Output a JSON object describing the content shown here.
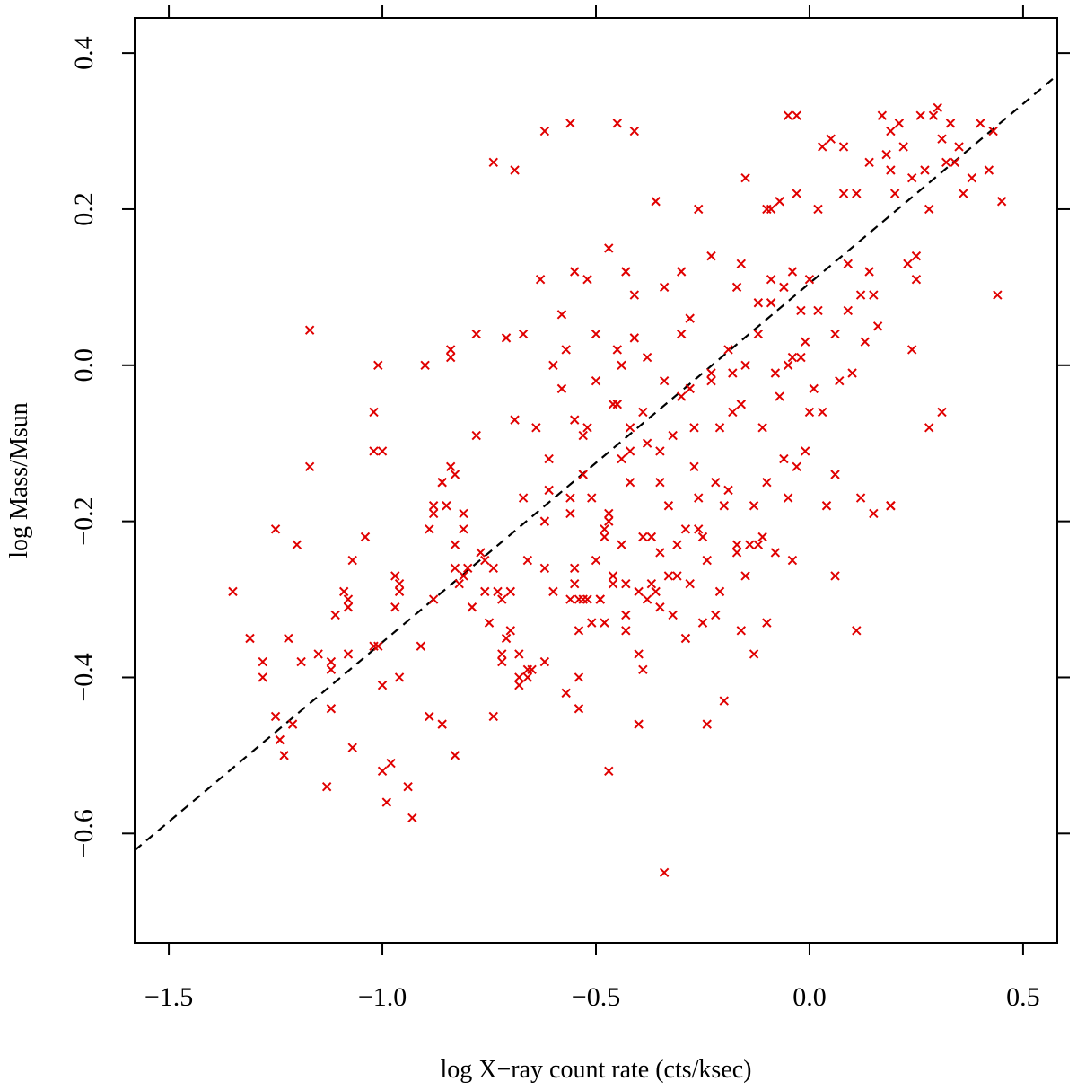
{
  "chart_data": {
    "type": "scatter",
    "title": "",
    "xlabel": "log X−ray count rate (cts/ksec)",
    "ylabel": "log Mass/Msun",
    "xlim": [
      -1.58,
      0.58
    ],
    "ylim": [
      -0.74,
      0.445
    ],
    "xticks": [
      -1.5,
      -1.0,
      -0.5,
      0.0,
      0.5
    ],
    "xtick_labels": [
      "−1.5",
      "−1.0",
      "−0.5",
      "0.0",
      "0.5"
    ],
    "yticks": [
      -0.6,
      -0.4,
      -0.2,
      0.0,
      0.2,
      0.4
    ],
    "ytick_labels": [
      "−0.6",
      "−0.4",
      "−0.2",
      "0.0",
      "0.2",
      "0.4"
    ],
    "grid": false,
    "marker": "x",
    "point_color": "#e00000",
    "line_color": "#000000",
    "fit_line": {
      "style": "dashed",
      "intercept": 0.105,
      "slope": 0.46
    },
    "points": [
      [
        -1.35,
        -0.29
      ],
      [
        -1.31,
        -0.35
      ],
      [
        -1.28,
        -0.38
      ],
      [
        -1.28,
        -0.4
      ],
      [
        -1.25,
        -0.21
      ],
      [
        -1.25,
        -0.45
      ],
      [
        -1.24,
        -0.48
      ],
      [
        -1.23,
        -0.5
      ],
      [
        -1.22,
        -0.35
      ],
      [
        -1.21,
        -0.46
      ],
      [
        -1.2,
        -0.23
      ],
      [
        -1.19,
        -0.38
      ],
      [
        -1.17,
        0.045
      ],
      [
        -1.17,
        -0.13
      ],
      [
        -1.15,
        -0.37
      ],
      [
        -1.13,
        -0.54
      ],
      [
        -1.12,
        -0.44
      ],
      [
        -1.12,
        -0.38
      ],
      [
        -1.12,
        -0.39
      ],
      [
        -1.11,
        -0.32
      ],
      [
        -1.08,
        -0.37
      ],
      [
        -1.09,
        -0.29
      ],
      [
        -1.08,
        -0.3
      ],
      [
        -1.08,
        -0.31
      ],
      [
        -1.07,
        -0.25
      ],
      [
        -1.07,
        -0.49
      ],
      [
        -1.04,
        -0.22
      ],
      [
        -1.02,
        -0.36
      ],
      [
        -1.01,
        -0.36
      ],
      [
        -1.01,
        0.0
      ],
      [
        -1.02,
        -0.06
      ],
      [
        -1.02,
        -0.11
      ],
      [
        -1.0,
        -0.11
      ],
      [
        -1.0,
        -0.41
      ],
      [
        -1.0,
        -0.52
      ],
      [
        -0.99,
        -0.56
      ],
      [
        -0.98,
        -0.51
      ],
      [
        -0.97,
        -0.27
      ],
      [
        -0.97,
        -0.31
      ],
      [
        -0.96,
        -0.28
      ],
      [
        -0.96,
        -0.29
      ],
      [
        -0.96,
        -0.4
      ],
      [
        -0.94,
        -0.54
      ],
      [
        -0.93,
        -0.58
      ],
      [
        -0.91,
        -0.36
      ],
      [
        -0.89,
        -0.45
      ],
      [
        -0.9,
        0.0
      ],
      [
        -0.89,
        -0.21
      ],
      [
        -0.88,
        -0.18
      ],
      [
        -0.88,
        -0.19
      ],
      [
        -0.88,
        -0.3
      ],
      [
        -0.86,
        -0.15
      ],
      [
        -0.86,
        -0.15
      ],
      [
        -0.86,
        -0.46
      ],
      [
        -0.85,
        -0.18
      ],
      [
        -0.84,
        0.02
      ],
      [
        -0.84,
        0.01
      ],
      [
        -0.84,
        -0.13
      ],
      [
        -0.83,
        -0.14
      ],
      [
        -0.83,
        -0.23
      ],
      [
        -0.83,
        -0.26
      ],
      [
        -0.83,
        -0.5
      ],
      [
        -0.82,
        -0.28
      ],
      [
        -0.81,
        -0.19
      ],
      [
        -0.81,
        -0.21
      ],
      [
        -0.81,
        -0.27
      ],
      [
        -0.8,
        -0.26
      ],
      [
        -0.79,
        -0.31
      ],
      [
        -0.78,
        -0.09
      ],
      [
        -0.77,
        -0.24
      ],
      [
        -0.76,
        -0.25
      ],
      [
        -0.76,
        -0.29
      ],
      [
        -0.75,
        -0.33
      ],
      [
        -0.74,
        -0.45
      ],
      [
        -0.74,
        -0.26
      ],
      [
        -0.73,
        -0.29
      ],
      [
        -0.72,
        -0.38
      ],
      [
        -0.72,
        -0.37
      ],
      [
        -0.72,
        -0.3
      ],
      [
        -0.71,
        0.035
      ],
      [
        -0.71,
        -0.35
      ],
      [
        -0.7,
        -0.29
      ],
      [
        -0.7,
        -0.34
      ],
      [
        -0.69,
        -0.07
      ],
      [
        -0.69,
        0.25
      ],
      [
        -0.68,
        -0.37
      ],
      [
        -0.68,
        -0.4
      ],
      [
        -0.68,
        -0.41
      ],
      [
        -0.67,
        0.04
      ],
      [
        -0.67,
        -0.17
      ],
      [
        -0.66,
        -0.25
      ],
      [
        -0.66,
        -0.4
      ],
      [
        -0.66,
        -0.39
      ],
      [
        -0.65,
        -0.39
      ],
      [
        -0.64,
        -0.08
      ],
      [
        -0.63,
        0.11
      ],
      [
        -0.62,
        -0.38
      ],
      [
        -0.62,
        -0.26
      ],
      [
        -0.62,
        -0.2
      ],
      [
        -0.61,
        -0.12
      ],
      [
        -0.61,
        -0.16
      ],
      [
        -0.6,
        -0.29
      ],
      [
        -0.58,
        0.065
      ],
      [
        -0.57,
        -0.42
      ],
      [
        -0.56,
        -0.3
      ],
      [
        -0.56,
        -0.17
      ],
      [
        -0.56,
        -0.19
      ],
      [
        -0.55,
        0.12
      ],
      [
        -0.55,
        -0.26
      ],
      [
        -0.55,
        -0.28
      ],
      [
        -0.54,
        -0.44
      ],
      [
        -0.54,
        -0.34
      ],
      [
        -0.54,
        -0.3
      ],
      [
        -0.54,
        -0.4
      ],
      [
        -0.53,
        -0.3
      ],
      [
        -0.53,
        -0.14
      ],
      [
        -0.52,
        -0.08
      ],
      [
        -0.52,
        -0.3
      ],
      [
        -0.51,
        -0.17
      ],
      [
        -0.51,
        -0.33
      ],
      [
        -0.5,
        -0.02
      ],
      [
        -0.5,
        0.04
      ],
      [
        -0.5,
        -0.25
      ],
      [
        -0.49,
        -0.3
      ],
      [
        -0.49,
        -0.3
      ],
      [
        -0.48,
        -0.21
      ],
      [
        -0.48,
        -0.22
      ],
      [
        -0.48,
        -0.33
      ],
      [
        -0.47,
        -0.52
      ],
      [
        -0.47,
        -0.19
      ],
      [
        -0.47,
        -0.2
      ],
      [
        -0.46,
        -0.27
      ],
      [
        -0.46,
        -0.28
      ],
      [
        -0.45,
        0.31
      ],
      [
        -0.45,
        0.02
      ],
      [
        -0.45,
        -0.05
      ],
      [
        -0.44,
        -0.12
      ],
      [
        -0.44,
        -0.23
      ],
      [
        -0.43,
        -0.34
      ],
      [
        -0.43,
        -0.28
      ],
      [
        -0.43,
        -0.32
      ],
      [
        -0.42,
        -0.08
      ],
      [
        -0.42,
        -0.11
      ],
      [
        -0.42,
        -0.15
      ],
      [
        -0.41,
        0.3
      ],
      [
        -0.41,
        0.035
      ],
      [
        -0.4,
        -0.46
      ],
      [
        -0.4,
        -0.37
      ],
      [
        -0.4,
        -0.29
      ],
      [
        -0.39,
        -0.22
      ],
      [
        -0.39,
        -0.39
      ],
      [
        -0.38,
        0.01
      ],
      [
        -0.38,
        -0.1
      ],
      [
        -0.38,
        -0.3
      ],
      [
        -0.37,
        -0.22
      ],
      [
        -0.37,
        -0.28
      ],
      [
        -0.36,
        -0.29
      ],
      [
        -0.35,
        -0.11
      ],
      [
        -0.35,
        -0.15
      ],
      [
        -0.35,
        -0.31
      ],
      [
        -0.35,
        -0.24
      ],
      [
        -0.34,
        -0.65
      ],
      [
        -0.34,
        0.1
      ],
      [
        -0.34,
        -0.02
      ],
      [
        -0.33,
        -0.18
      ],
      [
        -0.33,
        -0.27
      ],
      [
        -0.32,
        -0.32
      ],
      [
        -0.31,
        -0.23
      ],
      [
        -0.31,
        -0.27
      ],
      [
        -0.3,
        0.04
      ],
      [
        -0.3,
        -0.04
      ],
      [
        -0.29,
        -0.21
      ],
      [
        -0.29,
        -0.35
      ],
      [
        -0.28,
        -0.28
      ],
      [
        -0.28,
        -0.03
      ],
      [
        -0.28,
        0.06
      ],
      [
        -0.27,
        -0.08
      ],
      [
        -0.26,
        -0.17
      ],
      [
        -0.26,
        -0.21
      ],
      [
        -0.25,
        -0.22
      ],
      [
        -0.25,
        -0.33
      ],
      [
        -0.24,
        -0.46
      ],
      [
        -0.24,
        -0.25
      ],
      [
        -0.23,
        -0.02
      ],
      [
        -0.23,
        -0.01
      ],
      [
        -0.22,
        -0.15
      ],
      [
        -0.22,
        -0.32
      ],
      [
        -0.21,
        -0.29
      ],
      [
        -0.2,
        -0.18
      ],
      [
        -0.2,
        -0.43
      ],
      [
        -0.19,
        -0.16
      ],
      [
        -0.19,
        0.02
      ],
      [
        -0.18,
        -0.01
      ],
      [
        -0.18,
        -0.06
      ],
      [
        -0.17,
        -0.23
      ],
      [
        -0.17,
        -0.24
      ],
      [
        -0.16,
        -0.34
      ],
      [
        -0.16,
        -0.05
      ],
      [
        -0.15,
        0.0
      ],
      [
        -0.15,
        -0.27
      ],
      [
        -0.14,
        -0.23
      ],
      [
        -0.13,
        -0.18
      ],
      [
        -0.13,
        -0.37
      ],
      [
        -0.12,
        0.08
      ],
      [
        -0.12,
        0.04
      ],
      [
        -0.12,
        -0.23
      ],
      [
        -0.11,
        -0.22
      ],
      [
        -0.11,
        -0.08
      ],
      [
        -0.1,
        -0.15
      ],
      [
        -0.1,
        -0.33
      ],
      [
        -0.09,
        0.2
      ],
      [
        -0.09,
        0.11
      ],
      [
        -0.09,
        0.08
      ],
      [
        -0.08,
        -0.01
      ],
      [
        -0.08,
        -0.24
      ],
      [
        -0.07,
        0.21
      ],
      [
        -0.07,
        -0.04
      ],
      [
        -0.06,
        0.1
      ],
      [
        -0.06,
        -0.12
      ],
      [
        -0.05,
        0.0
      ],
      [
        -0.05,
        -0.17
      ],
      [
        -0.04,
        0.01
      ],
      [
        -0.04,
        -0.25
      ],
      [
        -0.03,
        0.22
      ],
      [
        -0.03,
        -0.13
      ],
      [
        -0.02,
        0.07
      ],
      [
        -0.02,
        0.01
      ],
      [
        -0.01,
        0.03
      ],
      [
        -0.01,
        -0.11
      ],
      [
        0.0,
        -0.06
      ],
      [
        0.0,
        0.11
      ],
      [
        0.01,
        -0.03
      ],
      [
        0.02,
        0.07
      ],
      [
        0.02,
        0.2
      ],
      [
        0.03,
        -0.06
      ],
      [
        0.04,
        -0.18
      ],
      [
        0.05,
        0.29
      ],
      [
        0.06,
        -0.14
      ],
      [
        0.06,
        0.04
      ],
      [
        0.07,
        -0.02
      ],
      [
        0.08,
        0.22
      ],
      [
        0.09,
        0.07
      ],
      [
        0.1,
        -0.01
      ],
      [
        0.11,
        -0.34
      ],
      [
        0.12,
        -0.17
      ],
      [
        0.13,
        0.03
      ],
      [
        0.14,
        0.12
      ],
      [
        0.15,
        0.09
      ],
      [
        0.15,
        -0.19
      ],
      [
        0.16,
        0.05
      ],
      [
        0.17,
        0.32
      ],
      [
        0.18,
        0.27
      ],
      [
        0.19,
        0.25
      ],
      [
        0.19,
        0.3
      ],
      [
        0.2,
        0.22
      ],
      [
        0.21,
        0.31
      ],
      [
        0.22,
        0.28
      ],
      [
        0.23,
        0.13
      ],
      [
        0.24,
        0.24
      ],
      [
        0.25,
        0.14
      ],
      [
        0.26,
        0.32
      ],
      [
        0.27,
        0.25
      ],
      [
        0.28,
        0.2
      ],
      [
        0.29,
        0.32
      ],
      [
        0.3,
        0.33
      ],
      [
        0.31,
        0.29
      ],
      [
        0.32,
        0.26
      ],
      [
        0.33,
        0.31
      ],
      [
        0.34,
        0.26
      ],
      [
        0.35,
        0.28
      ],
      [
        0.36,
        0.22
      ],
      [
        0.38,
        0.24
      ],
      [
        0.4,
        0.31
      ],
      [
        0.42,
        0.25
      ],
      [
        0.43,
        0.3
      ],
      [
        0.44,
        0.09
      ],
      [
        0.45,
        0.21
      ],
      [
        0.24,
        0.02
      ],
      [
        0.28,
        -0.08
      ],
      [
        0.31,
        -0.06
      ],
      [
        0.06,
        -0.27
      ],
      [
        0.19,
        -0.18
      ],
      [
        0.19,
        -0.18
      ],
      [
        0.12,
        0.09
      ],
      [
        0.09,
        0.13
      ],
      [
        0.03,
        0.28
      ],
      [
        -0.03,
        0.32
      ],
      [
        -0.05,
        0.32
      ],
      [
        -0.23,
        0.14
      ],
      [
        -0.26,
        0.2
      ],
      [
        -0.3,
        0.12
      ],
      [
        -0.36,
        0.21
      ],
      [
        -0.41,
        0.09
      ],
      [
        -0.43,
        0.12
      ],
      [
        -0.47,
        0.15
      ],
      [
        -0.52,
        0.11
      ],
      [
        -0.56,
        0.31
      ],
      [
        -0.62,
        0.3
      ],
      [
        -0.74,
        0.26
      ],
      [
        -0.78,
        0.04
      ],
      [
        -0.6,
        0.0
      ],
      [
        -0.58,
        -0.03
      ],
      [
        -0.57,
        0.02
      ],
      [
        -0.55,
        -0.07
      ],
      [
        -0.53,
        -0.09
      ],
      [
        -0.46,
        -0.05
      ],
      [
        -0.44,
        0.0
      ],
      [
        -0.39,
        -0.06
      ],
      [
        -0.32,
        -0.09
      ],
      [
        -0.27,
        -0.13
      ],
      [
        -0.21,
        -0.08
      ],
      [
        -0.17,
        0.1
      ],
      [
        -0.16,
        0.13
      ],
      [
        -0.15,
        0.24
      ],
      [
        -0.1,
        0.2
      ],
      [
        -0.04,
        0.12
      ],
      [
        0.08,
        0.28
      ],
      [
        0.11,
        0.22
      ],
      [
        0.14,
        0.26
      ],
      [
        0.25,
        0.11
      ]
    ]
  }
}
